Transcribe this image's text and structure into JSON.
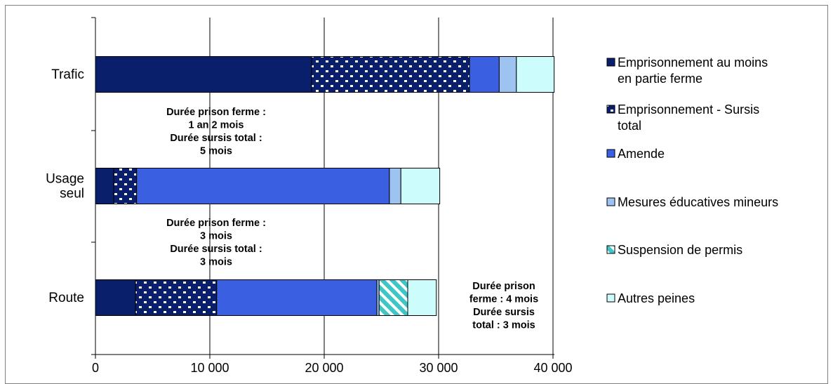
{
  "chart_data": {
    "type": "bar",
    "orientation": "horizontal",
    "stacked": true,
    "categories": [
      "Trafic",
      "Usage seul",
      "Route"
    ],
    "series": [
      {
        "name": "Emprisonnement au moins en partie ferme",
        "color": "#0A1F6B",
        "pattern": "solid",
        "values": [
          18900,
          1600,
          3500
        ]
      },
      {
        "name": "Emprisonnement - Sursis total",
        "color": "#0A1F6B",
        "pattern": "white-dots",
        "values": [
          13800,
          2000,
          7100
        ]
      },
      {
        "name": "Amende",
        "color": "#3A5FE0",
        "pattern": "solid",
        "values": [
          2600,
          22100,
          14000
        ]
      },
      {
        "name": "Mesures éducatives mineurs",
        "color": "#9DC3F0",
        "pattern": "solid",
        "values": [
          1500,
          1000,
          200
        ]
      },
      {
        "name": "Suspension de permis",
        "color": "#3EC6C6",
        "pattern": "diagonal-stripes",
        "values": [
          0,
          0,
          2500
        ]
      },
      {
        "name": "Autres peines",
        "color": "#CCFCFC",
        "pattern": "solid",
        "values": [
          3300,
          3400,
          2500
        ]
      }
    ],
    "xlim": [
      0,
      40000
    ],
    "xticks": [
      0,
      10000,
      20000,
      30000,
      40000
    ],
    "xtick_labels": [
      "0",
      "10 000",
      "20 000",
      "30 000",
      "40 000"
    ],
    "grid": "vertical",
    "legend_placement": "right",
    "annotations": [
      {
        "lines": [
          "Durée prison ferme :",
          "1 an 2 mois",
          "Durée sursis total :",
          "5 mois"
        ]
      },
      {
        "lines": [
          "Durée prison  ferme :",
          "3 mois",
          "Durée sursis total :",
          "3 mois"
        ]
      },
      {
        "lines": [
          "Durée prison",
          "ferme : 4 mois",
          "Durée sursis",
          "total :  3 mois"
        ]
      }
    ]
  },
  "legend_lines": [
    [
      "Emprisonnement au moins",
      "en partie ferme"
    ],
    [
      "Emprisonnement - Sursis",
      "total"
    ],
    [
      "Amende"
    ],
    [
      "Mesures éducatives mineurs"
    ],
    [
      "Suspension de permis"
    ],
    [
      "Autres peines"
    ]
  ],
  "category_lines": [
    [
      "Trafic"
    ],
    [
      "Usage",
      "seul"
    ],
    [
      "Route"
    ]
  ]
}
